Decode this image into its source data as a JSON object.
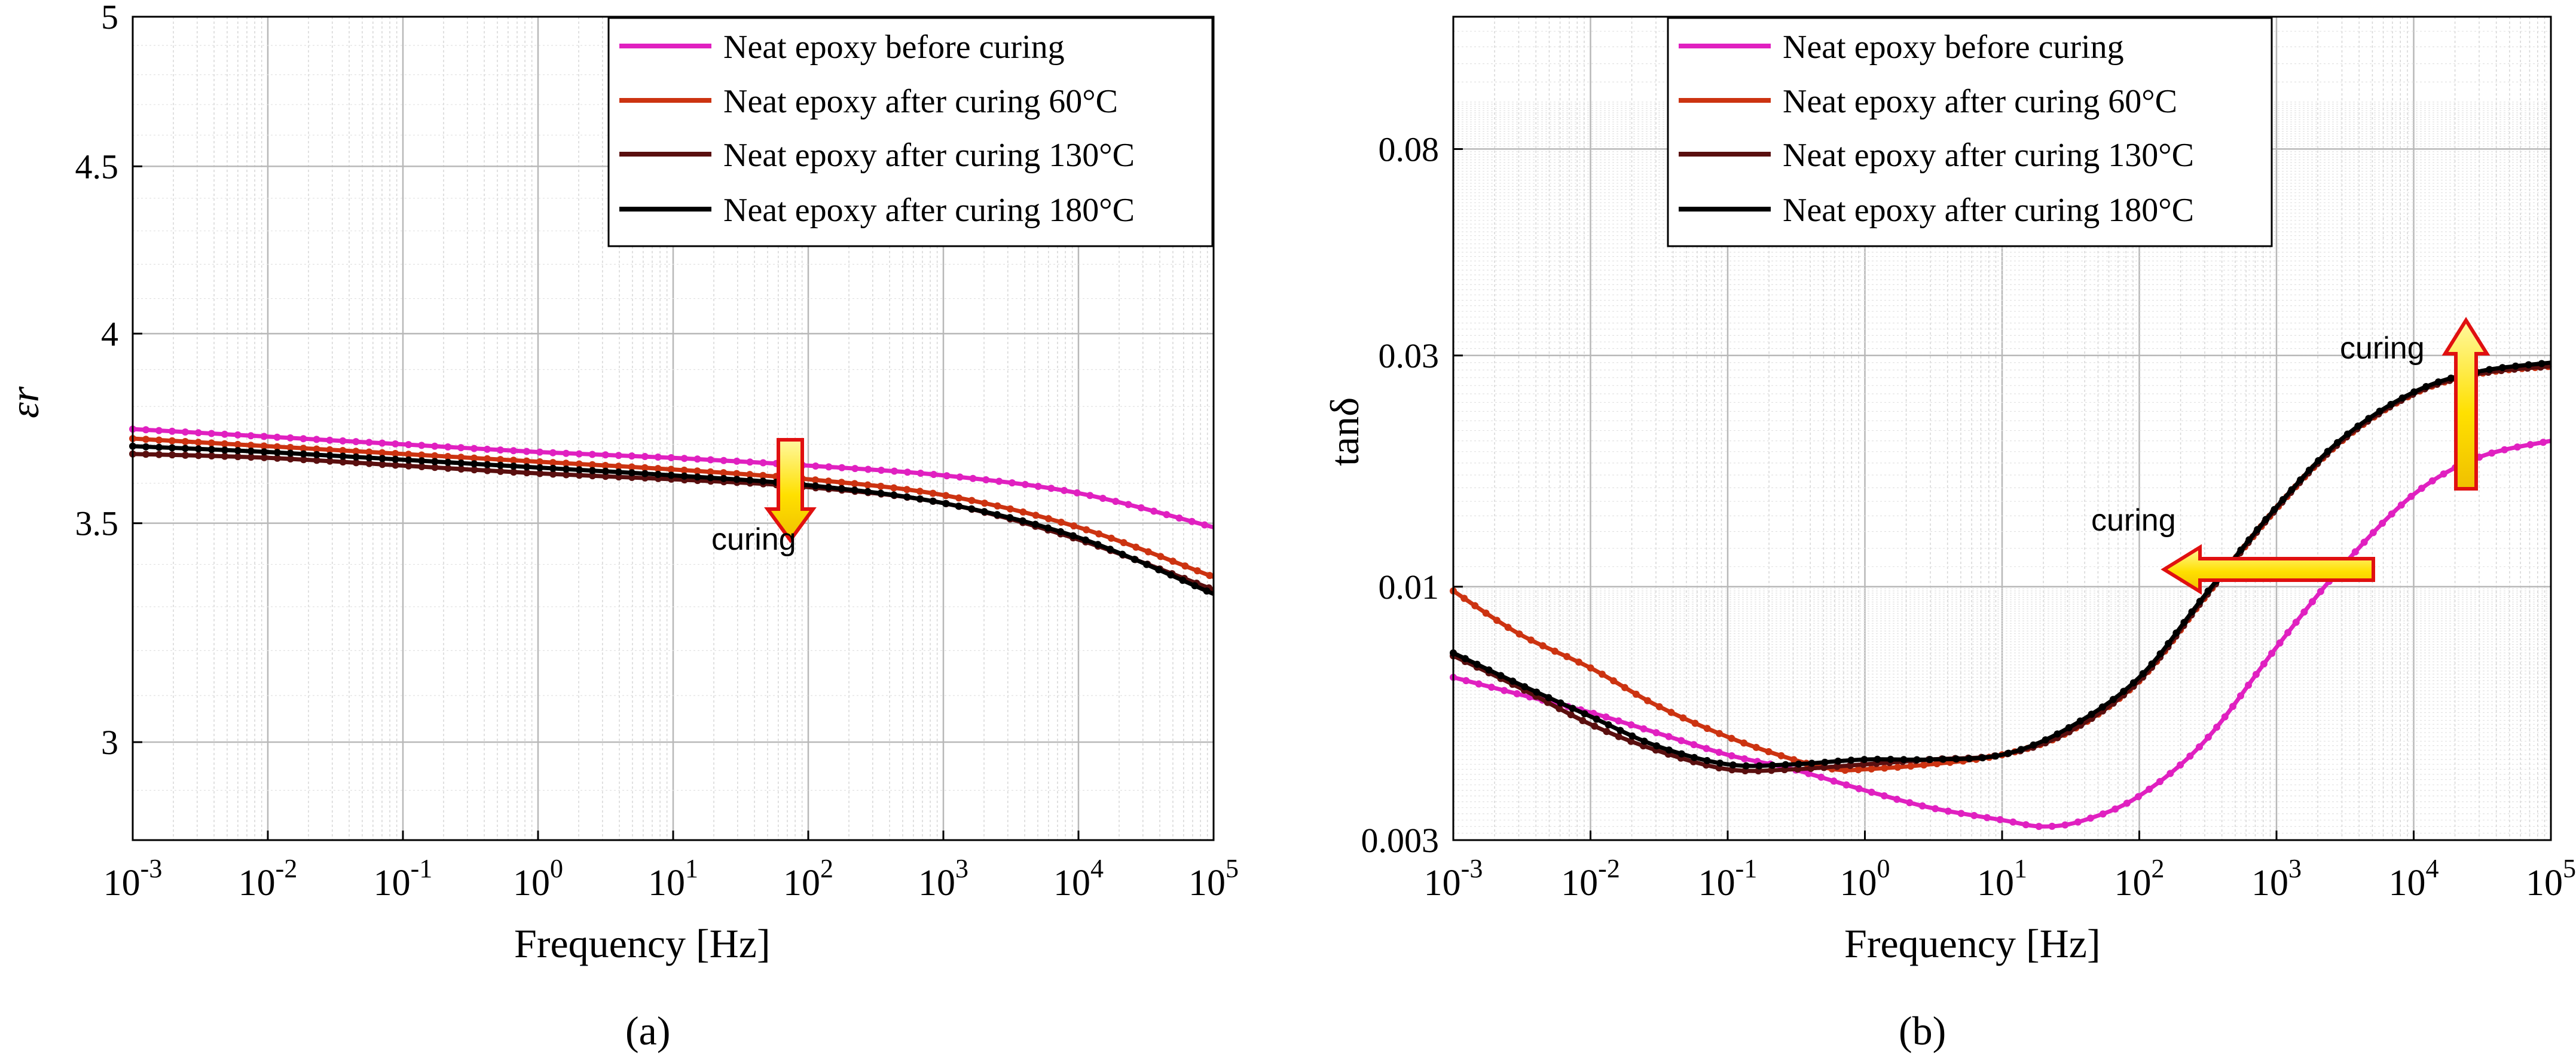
{
  "chart_data": [
    {
      "type": "line",
      "panel_label": "(a)",
      "title": "",
      "xlabel": "Frequency [Hz]",
      "ylabel": "εr",
      "xscale": "log",
      "yscale": "log",
      "xlim": [
        0.001,
        100000
      ],
      "ylim": [
        2.8,
        5.0
      ],
      "grid": true,
      "legend_position": "top-right",
      "x_tick_labels": [
        {
          "base": "10",
          "exp": "-3"
        },
        {
          "base": "10",
          "exp": "-2"
        },
        {
          "base": "10",
          "exp": "-1"
        },
        {
          "base": "10",
          "exp": "0"
        },
        {
          "base": "10",
          "exp": "1"
        },
        {
          "base": "10",
          "exp": "2"
        },
        {
          "base": "10",
          "exp": "3"
        },
        {
          "base": "10",
          "exp": "4"
        },
        {
          "base": "10",
          "exp": "5"
        }
      ],
      "y_ticks": [
        3,
        3.5,
        4,
        4.5,
        5
      ],
      "y_tick_labels": [
        "3",
        "3.5",
        "4",
        "4.5",
        "5"
      ],
      "series": [
        {
          "name": "Neat epoxy before curing",
          "color": "#e020c0",
          "x": [
            0.001,
            0.01,
            0.1,
            1,
            10,
            100,
            1000,
            10000,
            100000
          ],
          "y": [
            3.74,
            3.72,
            3.7,
            3.68,
            3.665,
            3.645,
            3.62,
            3.575,
            3.49
          ]
        },
        {
          "name": "Neat epoxy after curing 60°C",
          "color": "#cc3311",
          "x": [
            0.001,
            0.01,
            0.1,
            1,
            10,
            100,
            1000,
            10000,
            100000
          ],
          "y": [
            3.715,
            3.695,
            3.675,
            3.655,
            3.635,
            3.61,
            3.57,
            3.49,
            3.37
          ]
        },
        {
          "name": "Neat epoxy after curing 130°C",
          "color": "#5a0f0f",
          "x": [
            0.001,
            0.01,
            0.1,
            1,
            10,
            100,
            1000,
            10000,
            100000
          ],
          "y": [
            3.675,
            3.665,
            3.645,
            3.625,
            3.61,
            3.59,
            3.55,
            3.46,
            3.34
          ]
        },
        {
          "name": "Neat epoxy after curing 180°C",
          "color": "#000000",
          "x": [
            0.001,
            0.01,
            0.1,
            1,
            10,
            100,
            1000,
            10000,
            100000
          ],
          "y": [
            3.695,
            3.68,
            3.66,
            3.64,
            3.62,
            3.595,
            3.55,
            3.465,
            3.33
          ]
        }
      ],
      "annotations": [
        {
          "text": "curing",
          "arrow": "down",
          "x": 80,
          "y": 3.58
        }
      ]
    },
    {
      "type": "line",
      "panel_label": "(b)",
      "title": "",
      "xlabel": "Frequency [Hz]",
      "ylabel": "tanδ",
      "xscale": "log",
      "yscale": "log",
      "xlim": [
        0.001,
        100000
      ],
      "ylim": [
        0.003,
        0.15
      ],
      "grid": true,
      "legend_position": "top-left",
      "x_tick_labels": [
        {
          "base": "10",
          "exp": "-3"
        },
        {
          "base": "10",
          "exp": "-2"
        },
        {
          "base": "10",
          "exp": "-1"
        },
        {
          "base": "10",
          "exp": "0"
        },
        {
          "base": "10",
          "exp": "1"
        },
        {
          "base": "10",
          "exp": "2"
        },
        {
          "base": "10",
          "exp": "3"
        },
        {
          "base": "10",
          "exp": "4"
        },
        {
          "base": "10",
          "exp": "5"
        }
      ],
      "y_ticks": [
        0.003,
        0.01,
        0.03,
        0.08
      ],
      "y_tick_labels": [
        "0.003",
        "0.01",
        "0.03",
        "0.08"
      ],
      "series": [
        {
          "name": "Neat epoxy before curing",
          "color": "#e020c0",
          "x": [
            0.001,
            0.003,
            0.01,
            0.03,
            0.1,
            0.3,
            1,
            3,
            10,
            20,
            40,
            100,
            300,
            1000,
            3000,
            10000,
            30000,
            100000
          ],
          "y": [
            0.0065,
            0.006,
            0.0055,
            0.005,
            0.0045,
            0.0042,
            0.0038,
            0.0035,
            0.0033,
            0.0032,
            0.0033,
            0.0037,
            0.0048,
            0.0075,
            0.011,
            0.0155,
            0.0185,
            0.02
          ]
        },
        {
          "name": "Neat epoxy after curing 60°C",
          "color": "#cc3311",
          "x": [
            0.001,
            0.003,
            0.01,
            0.03,
            0.1,
            0.3,
            0.6,
            1,
            3,
            10,
            30,
            100,
            300,
            1000,
            3000,
            10000,
            30000,
            100000
          ],
          "y": [
            0.0098,
            0.008,
            0.0068,
            0.0057,
            0.0049,
            0.0044,
            0.0042,
            0.0042,
            0.0043,
            0.0045,
            0.005,
            0.0064,
            0.0095,
            0.0145,
            0.02,
            0.025,
            0.0275,
            0.0285
          ]
        },
        {
          "name": "Neat epoxy after curing 130°C",
          "color": "#5a0f0f",
          "x": [
            0.001,
            0.003,
            0.01,
            0.03,
            0.1,
            0.3,
            1,
            3,
            10,
            30,
            100,
            300,
            1000,
            3000,
            10000,
            30000,
            100000
          ],
          "y": [
            0.0072,
            0.0062,
            0.0052,
            0.0046,
            0.0042,
            0.0042,
            0.0043,
            0.0044,
            0.0045,
            0.005,
            0.0064,
            0.0095,
            0.0145,
            0.02,
            0.025,
            0.0275,
            0.0285
          ]
        },
        {
          "name": "Neat epoxy after curing 180°C",
          "color": "#000000",
          "x": [
            0.001,
            0.003,
            0.01,
            0.03,
            0.1,
            0.3,
            1,
            3,
            10,
            30,
            100,
            300,
            1000,
            3000,
            10000,
            30000,
            100000
          ],
          "y": [
            0.0073,
            0.0063,
            0.0054,
            0.0047,
            0.0043,
            0.0043,
            0.0044,
            0.0044,
            0.0045,
            0.0051,
            0.0065,
            0.0096,
            0.0146,
            0.0202,
            0.0252,
            0.0278,
            0.029
          ]
        }
      ],
      "annotations": [
        {
          "text": "curing",
          "arrow": "left",
          "x": 300,
          "y": 0.0105
        },
        {
          "text": "curing",
          "arrow": "up",
          "x": 25000,
          "y": 0.03
        }
      ]
    }
  ]
}
